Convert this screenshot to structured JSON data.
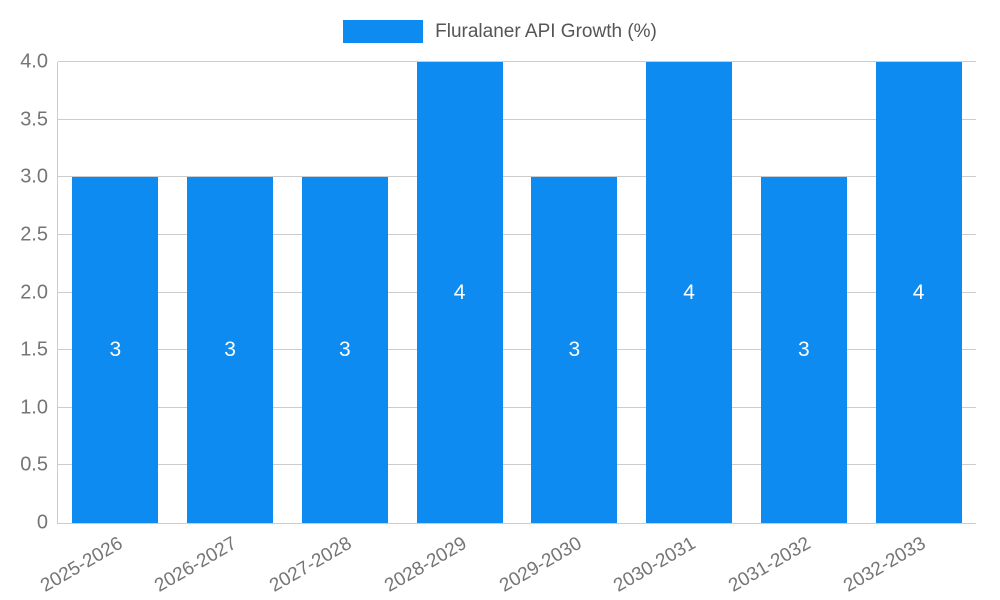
{
  "legend": {
    "label": "Fluralaner API Growth (%)"
  },
  "colors": {
    "bar": "#0d8bf0",
    "grid": "#cccccc",
    "tick_text": "#757575",
    "legend_text": "#555555",
    "value_label": "#ffffff"
  },
  "chart_data": {
    "type": "bar",
    "title": "Fluralaner API Growth (%)",
    "xlabel": "",
    "ylabel": "",
    "categories": [
      "2025-2026",
      "2026-2027",
      "2027-2028",
      "2028-2029",
      "2029-2030",
      "2030-2031",
      "2031-2032",
      "2032-2033"
    ],
    "values": [
      3,
      3,
      3,
      4,
      3,
      4,
      3,
      4
    ],
    "value_labels": [
      "3",
      "3",
      "3",
      "4",
      "3",
      "4",
      "3",
      "4"
    ],
    "ylim": [
      0,
      4
    ],
    "ytick_values": [
      0,
      0.5,
      1,
      1.5,
      2,
      2.5,
      3,
      3.5,
      4
    ],
    "ytick_labels": [
      "0",
      "0.5",
      "1.0",
      "1.5",
      "2.0",
      "2.5",
      "3.0",
      "3.5",
      "4.0"
    ],
    "grid": true,
    "legend_position": "top-center",
    "bar_label_position": "center"
  }
}
